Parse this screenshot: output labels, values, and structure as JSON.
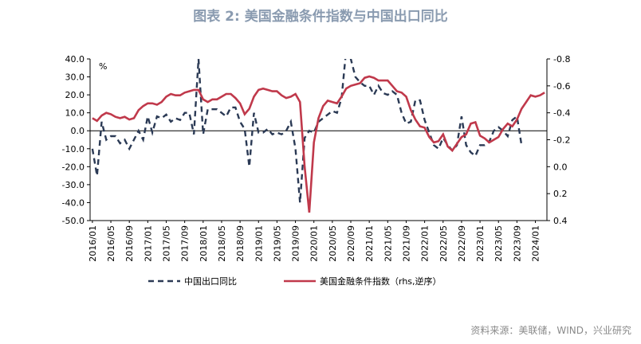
{
  "title": "图表 2:  美国金融条件指数与中国出口同比",
  "source": "资料来源：美联储，WIND，兴业研究",
  "colors": {
    "export": "#2b3a55",
    "fci": "#c0394b",
    "title": "#8a9bb0"
  },
  "chart_data": {
    "type": "line",
    "title": "图表 2:  美国金融条件指数与中国出口同比",
    "y_left_unit_label": "%",
    "left_axis": {
      "min": -50,
      "max": 40,
      "ticks": [
        "40.0",
        "30.0",
        "20.0",
        "10.0",
        "0.0",
        "-10.0",
        "-20.0",
        "-30.0",
        "-40.0",
        "-50.0"
      ]
    },
    "right_axis": {
      "min": -0.8,
      "max": 0.4,
      "inverted": true,
      "ticks": [
        "-0.8",
        "-0.6",
        "-0.4",
        "-0.2",
        "0.0",
        "0.2",
        "0.4"
      ]
    },
    "x_tick_labels": [
      "2016/01",
      "2016/05",
      "2016/09",
      "2017/01",
      "2017/05",
      "2017/09",
      "2018/01",
      "2018/05",
      "2018/09",
      "2019/01",
      "2019/05",
      "2019/09",
      "2020/01",
      "2020/05",
      "2020/09",
      "2021/01",
      "2021/05",
      "2021/09",
      "2022/01",
      "2022/05",
      "2022/09",
      "2023/01",
      "2023/05",
      "2023/09",
      "2024/01"
    ],
    "start": "2016/01",
    "series": [
      {
        "name": "中国出口同比",
        "style": "dashed",
        "axis": "left",
        "values": [
          -10,
          -25,
          5,
          -5,
          -3,
          -3,
          -7,
          -5,
          -10,
          -5,
          0,
          -5,
          8,
          -1,
          8,
          7,
          9,
          5,
          7,
          6,
          10,
          10,
          -2,
          40,
          -2,
          12,
          12,
          12,
          10,
          8,
          13,
          13,
          5,
          1,
          -20,
          10,
          -1,
          -1,
          1,
          -2,
          -1,
          -2,
          0,
          5,
          -10,
          -40,
          -4,
          0,
          -1,
          5,
          7,
          9,
          11,
          10,
          18,
          45,
          40,
          30,
          27,
          25,
          25,
          20,
          25,
          21,
          20,
          22,
          20,
          10,
          4,
          5,
          17,
          17,
          6,
          -1,
          -8,
          -10,
          -4,
          -8,
          -11,
          -8,
          8,
          -8,
          -12,
          -14,
          -8,
          -8,
          -6,
          0,
          2,
          0,
          -3,
          6,
          8,
          -8
        ]
      },
      {
        "name": "美国金融条件指数（rhs,逆序）",
        "style": "solid",
        "axis": "right",
        "values": [
          -0.36,
          -0.34,
          -0.38,
          -0.4,
          -0.39,
          -0.37,
          -0.36,
          -0.37,
          -0.35,
          -0.36,
          -0.42,
          -0.45,
          -0.47,
          -0.47,
          -0.46,
          -0.48,
          -0.52,
          -0.54,
          -0.53,
          -0.53,
          -0.55,
          -0.56,
          -0.57,
          -0.57,
          -0.5,
          -0.48,
          -0.5,
          -0.5,
          -0.52,
          -0.54,
          -0.54,
          -0.51,
          -0.47,
          -0.39,
          -0.43,
          -0.52,
          -0.57,
          -0.58,
          -0.57,
          -0.56,
          -0.56,
          -0.53,
          -0.51,
          -0.52,
          -0.54,
          -0.48,
          0.0,
          0.34,
          -0.18,
          -0.36,
          -0.45,
          -0.49,
          -0.48,
          -0.47,
          -0.52,
          -0.58,
          -0.6,
          -0.61,
          -0.62,
          -0.66,
          -0.67,
          -0.66,
          -0.64,
          -0.64,
          -0.64,
          -0.6,
          -0.56,
          -0.55,
          -0.52,
          -0.42,
          -0.35,
          -0.3,
          -0.29,
          -0.22,
          -0.18,
          -0.19,
          -0.24,
          -0.15,
          -0.12,
          -0.17,
          -0.22,
          -0.24,
          -0.32,
          -0.33,
          -0.23,
          -0.21,
          -0.18,
          -0.2,
          -0.22,
          -0.28,
          -0.32,
          -0.3,
          -0.35,
          -0.43,
          -0.48,
          -0.53,
          -0.52,
          -0.53,
          -0.55
        ]
      }
    ],
    "legend_position": "bottom"
  }
}
